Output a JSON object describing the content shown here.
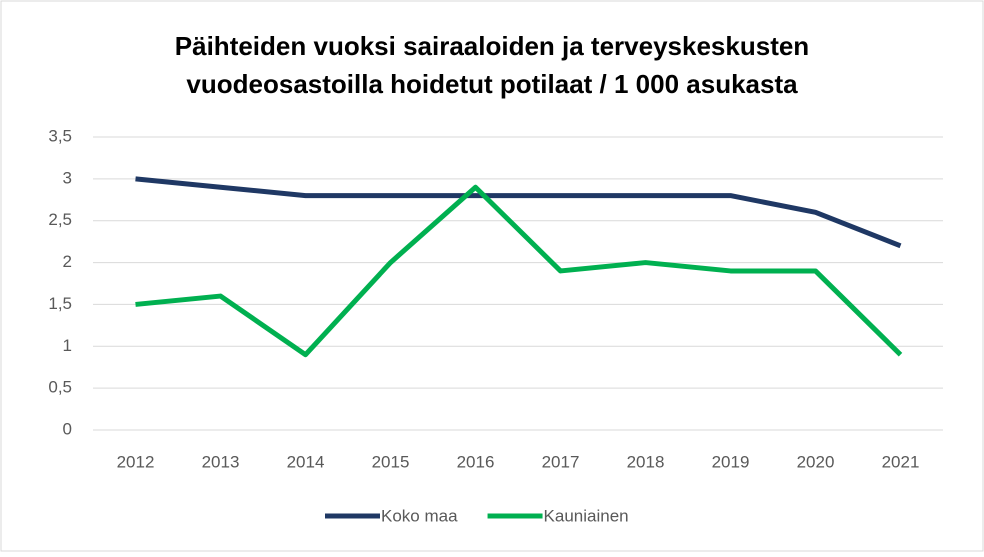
{
  "chart_data": {
    "type": "line",
    "title": [
      "Päihteiden vuoksi sairaaloiden ja terveyskeskusten",
      "vuodeosastoilla hoidetut potilaat / 1 000 asukasta"
    ],
    "categories": [
      "2012",
      "2013",
      "2014",
      "2015",
      "2016",
      "2017",
      "2018",
      "2019",
      "2020",
      "2021"
    ],
    "series": [
      {
        "name": "Koko maa",
        "color": "#1f3864",
        "values": [
          3.0,
          2.9,
          2.8,
          2.8,
          2.8,
          2.8,
          2.8,
          2.8,
          2.6,
          2.2
        ]
      },
      {
        "name": "Kauniainen",
        "color": "#00b050",
        "values": [
          1.5,
          1.6,
          0.9,
          2.0,
          2.9,
          1.9,
          2.0,
          1.9,
          1.9,
          0.9
        ]
      }
    ],
    "ylim": [
      0,
      3.5
    ],
    "yticks": [
      0,
      {
        "value": 0.5,
        "label": "0,5"
      },
      1,
      {
        "value": 1.5,
        "label": "1,5"
      },
      2,
      {
        "value": 2.5,
        "label": "2,5"
      },
      3,
      {
        "value": 3.5,
        "label": "3,5"
      }
    ],
    "grid": true,
    "legend": "bottom"
  }
}
